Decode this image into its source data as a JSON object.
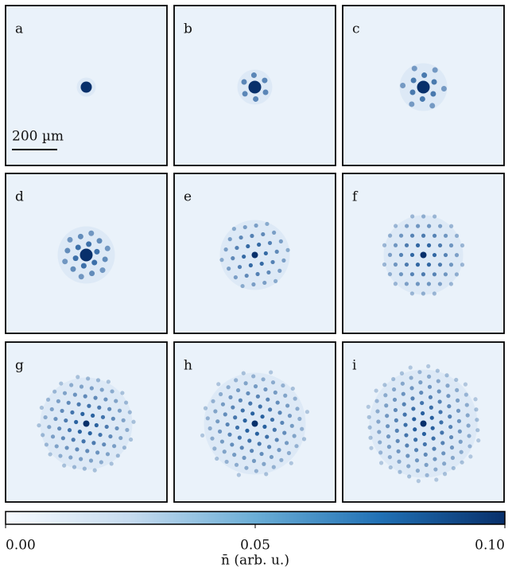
{
  "panels": [
    {
      "label": "a"
    },
    {
      "label": "b"
    },
    {
      "label": "c"
    },
    {
      "label": "d"
    },
    {
      "label": "e"
    },
    {
      "label": "f"
    },
    {
      "label": "g"
    },
    {
      "label": "h"
    },
    {
      "label": "i"
    }
  ],
  "scale_bar": {
    "label": "200 µm"
  },
  "colorbar": {
    "label": "n̄ (arb. u.)",
    "limits": [
      0,
      0.1
    ],
    "ticks": [
      {
        "value": 0,
        "label": "0.00"
      },
      {
        "value": 0.05,
        "label": "0.05"
      },
      {
        "value": 0.1,
        "label": "0.10"
      }
    ]
  }
}
